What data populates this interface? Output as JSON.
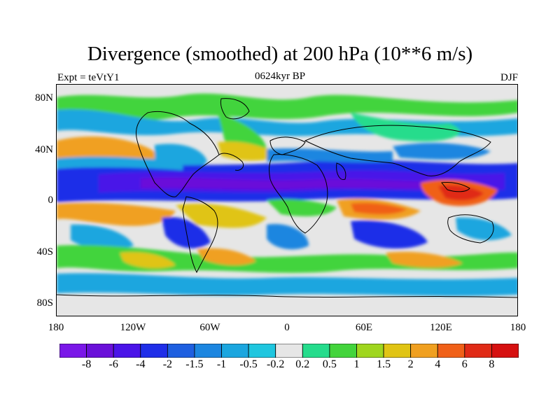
{
  "title": "Divergence (smoothed) at 200 hPa (10**6 m/s)",
  "left_label": "Expt = teVtY1",
  "center_label": "0624kyr BP",
  "right_label": "DJF",
  "y_axis": {
    "ticks": [
      "80N",
      "40N",
      "0",
      "40S",
      "80S"
    ]
  },
  "x_axis": {
    "ticks": [
      "180",
      "120W",
      "60W",
      "0",
      "60E",
      "120E",
      "180"
    ]
  },
  "colorbar": {
    "labels": [
      "-8",
      "-6",
      "-4",
      "-2",
      "-1.5",
      "-1",
      "-0.5",
      "-0.2",
      "0.2",
      "0.5",
      "1",
      "1.5",
      "2",
      "4",
      "6",
      "8"
    ],
    "colors": [
      "#7a17e8",
      "#6a10d9",
      "#4a14e8",
      "#1f2ee8",
      "#1e5fe0",
      "#1c86e0",
      "#1ba6df",
      "#1fc6df",
      "#e6e6e6",
      "#25dc8c",
      "#43d43c",
      "#9fd61e",
      "#e0c414",
      "#f0a020",
      "#f06018",
      "#e02a16",
      "#d61010"
    ]
  },
  "colors": {
    "background": "#ffffff",
    "neutral": "#e6e6e6",
    "coast": "#000000"
  }
}
